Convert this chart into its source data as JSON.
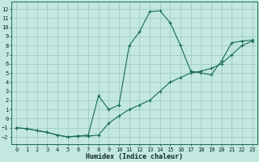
{
  "xlabel": "Humidex (Indice chaleur)",
  "background_color": "#c2e8e0",
  "grid_color": "#a0ccc4",
  "line_color": "#1a6b5a",
  "xlim": [
    -0.5,
    23.5
  ],
  "ylim": [
    -2.8,
    12.8
  ],
  "xticks": [
    0,
    1,
    2,
    3,
    4,
    5,
    6,
    7,
    8,
    9,
    10,
    11,
    12,
    13,
    14,
    15,
    16,
    17,
    18,
    19,
    20,
    21,
    22,
    23
  ],
  "yticks": [
    -2,
    -1,
    0,
    1,
    2,
    3,
    4,
    5,
    6,
    7,
    8,
    9,
    10,
    11,
    12
  ],
  "curve1_x": [
    0,
    1,
    2,
    3,
    4,
    5,
    6,
    7,
    8,
    9,
    10,
    11,
    12,
    13,
    14,
    15,
    16,
    17,
    18,
    19,
    20,
    21,
    22,
    23
  ],
  "curve1_y": [
    -1.0,
    -1.1,
    -1.3,
    -1.5,
    -1.8,
    -2.0,
    -1.9,
    -1.8,
    2.5,
    1.0,
    1.5,
    8.0,
    9.5,
    11.7,
    11.8,
    10.5,
    8.0,
    5.2,
    5.0,
    4.8,
    6.3,
    8.3,
    8.5,
    8.6
  ],
  "curve2_x": [
    0,
    1,
    2,
    3,
    4,
    5,
    6,
    7,
    8,
    9,
    10,
    11,
    12,
    13,
    14,
    15,
    16,
    17,
    18,
    19,
    20,
    21,
    22,
    23
  ],
  "curve2_y": [
    -1.0,
    -1.1,
    -1.3,
    -1.5,
    -1.8,
    -2.0,
    -1.9,
    -1.9,
    -1.8,
    -0.5,
    0.3,
    1.0,
    1.5,
    2.0,
    3.0,
    4.0,
    4.5,
    5.0,
    5.2,
    5.5,
    6.0,
    7.0,
    8.0,
    8.5
  ]
}
